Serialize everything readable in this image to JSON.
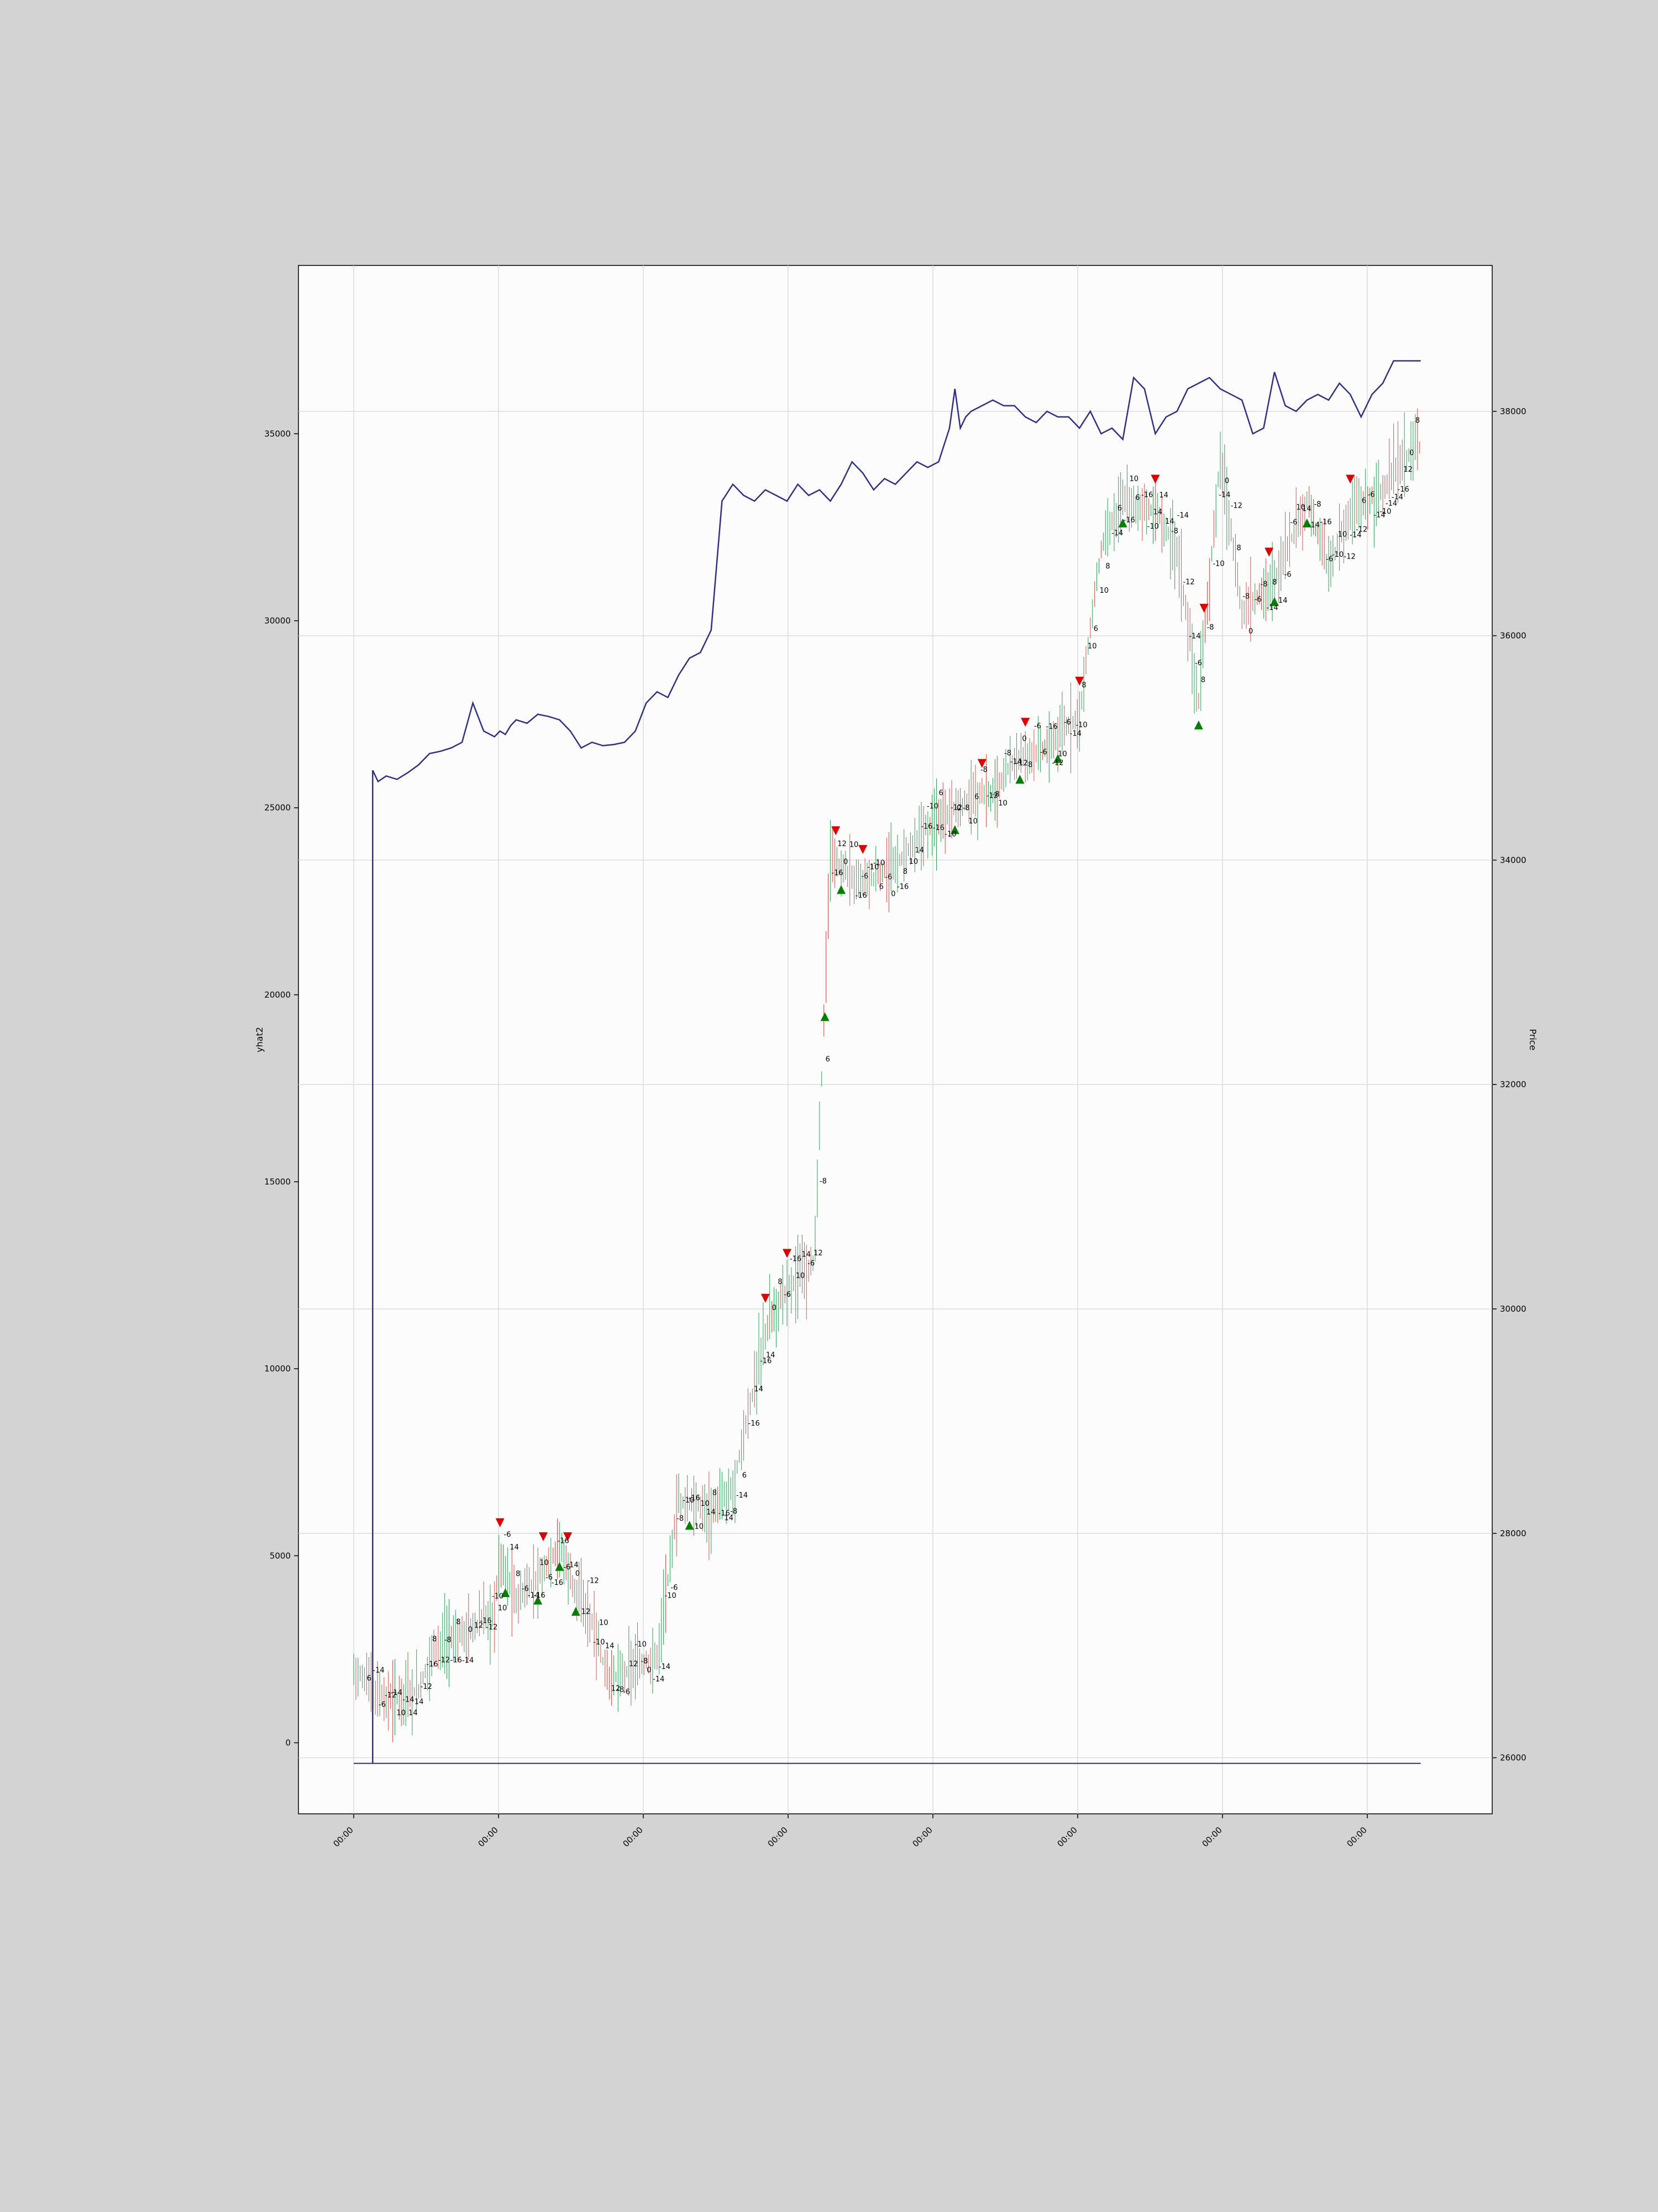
{
  "chart_data": {
    "type": "line",
    "ylabel_left": "yhat2",
    "ylabel_right": "Price",
    "xlabel": "",
    "x_tick_labels": [
      "00:00",
      "00:00",
      "00:00",
      "00:00",
      "00:00",
      "00:00",
      "00:00",
      "00:00"
    ],
    "left_axis": {
      "ylim": [
        -1900,
        39500
      ],
      "ticks": [
        0,
        5000,
        10000,
        15000,
        20000,
        25000,
        30000,
        35000
      ]
    },
    "right_axis": {
      "ylim": [
        25500,
        39300
      ],
      "ticks": [
        26000,
        28000,
        30000,
        32000,
        34000,
        36000,
        38000
      ]
    },
    "grid": true,
    "legend": "none",
    "colors": {
      "yhat_line": "#2e2e8f",
      "up_candle": "#2ca05a",
      "down_candle": "#d9534f",
      "buy_marker": "#008000",
      "sell_marker": "#e00000",
      "annotation": "#000000"
    },
    "series": [
      {
        "axis": "right",
        "x": [
          0,
          3,
          6,
          10,
          13,
          20,
          30,
          40,
          50,
          60,
          70,
          80,
          90,
          100,
          110,
          120,
          130,
          140,
          150,
          160,
          170,
          180,
          190,
          200,
          210,
          220,
          230,
          240,
          250,
          260,
          270,
          280,
          290,
          300,
          310,
          320,
          330,
          340,
          350,
          360,
          370,
          380,
          390,
          400,
          410,
          420,
          430,
          440,
          450,
          460,
          470,
          480,
          490,
          500,
          510,
          520,
          530,
          540,
          550,
          560,
          570,
          580,
          590,
          600,
          610,
          620,
          630,
          640,
          650,
          660,
          670,
          680,
          690,
          700,
          710,
          720,
          730,
          740,
          750,
          760,
          770,
          780,
          790,
          800,
          810,
          820,
          830,
          840,
          850,
          860,
          870,
          880,
          890,
          900,
          910,
          920,
          930,
          940,
          950,
          960,
          970,
          980,
          990,
          1000,
          1010,
          1020,
          1030,
          1040,
          1050,
          1060,
          1070,
          1080,
          1090,
          1100,
          1110,
          1120,
          1130,
          1140,
          1150,
          1160,
          1170,
          1180,
          1190,
          1200,
          1210,
          1220,
          1230,
          1240,
          1250,
          1260,
          1270,
          1280,
          1290,
          1300,
          1310,
          1320,
          1330,
          1340,
          1350,
          1360,
          1370,
          1380,
          1390,
          1400,
          1410,
          1420,
          1430,
          1440,
          1450,
          1460,
          1470,
          1480,
          1490,
          1500,
          1510,
          1520,
          1530,
          1540,
          1550,
          1560,
          1570,
          1580,
          1590,
          1600,
          1610,
          1620,
          1630,
          1640,
          1650,
          1660,
          1670,
          1680,
          1690,
          1700,
          1710,
          1720,
          1730,
          1740,
          1750,
          1760,
          1770,
          1780,
          1790,
          1800,
          1810,
          1820,
          1830,
          1840,
          1850,
          1860,
          1870,
          1880,
          1890,
          1900,
          1910,
          1920,
          1930,
          1940,
          1950,
          1960,
          1970
        ],
        "y": [
          25950,
          25950,
          25950,
          25950,
          25950,
          25950,
          25950,
          25950,
          25950,
          25950,
          25950,
          25950,
          25950,
          25950,
          25950,
          25950,
          25950,
          25950,
          25950,
          25950,
          25950,
          25950,
          25950,
          25950,
          25950,
          25950,
          25950,
          25950,
          25950,
          25950,
          25950,
          25950,
          25950,
          25950,
          25950,
          25950,
          25950,
          25950,
          25950,
          25950,
          25950,
          25950,
          25950,
          25950,
          25950,
          25950,
          25950,
          25950,
          25950,
          25950,
          25950,
          25950,
          25950,
          25950,
          25950,
          25950,
          25950,
          25950,
          25950,
          25950,
          25950,
          25950,
          25950,
          25950,
          25950,
          25950,
          25950,
          25950,
          25950,
          25950,
          25950,
          25950,
          25950,
          25950,
          25950,
          25950,
          25950,
          25950,
          25950,
          25950,
          25950,
          25950,
          25950,
          25950,
          25950,
          25950,
          25950,
          25950,
          25950,
          25950,
          25950,
          25950,
          25950,
          25950,
          25950,
          25950,
          25950,
          25950,
          25950,
          25950,
          25950,
          25950,
          25950,
          25950,
          25950,
          25950,
          25950,
          25950,
          25950,
          25950,
          25950,
          25950,
          25950,
          25950,
          25950,
          25950,
          25950,
          25950,
          25950,
          25950,
          25950,
          25950,
          25950,
          25950,
          25950,
          25950,
          25950,
          25950,
          25950,
          25950,
          25950,
          25950,
          25950,
          25950,
          25950,
          25950,
          25950,
          25950,
          25950,
          25950,
          25950,
          25950,
          25950,
          25950,
          25950,
          25950,
          25950,
          25950,
          25950,
          25950,
          25950,
          25950,
          25950,
          25950,
          25950,
          25950,
          25950,
          25950,
          25950,
          25950,
          25950,
          25950,
          25950,
          25950,
          25950,
          25950,
          25950,
          25950,
          25950,
          25950,
          25950,
          25950,
          25950,
          25950,
          25950,
          25950,
          25950,
          25950,
          25950,
          25950,
          25950,
          25950,
          25950,
          25950,
          25950,
          25950,
          25950,
          25950,
          25950,
          25950,
          25950,
          25950,
          25950,
          25950,
          25950,
          25950,
          25950,
          25950,
          25950,
          25950,
          25950
        ]
      },
      {
        "name": "",
        "axis": "right",
        "x": [
          35,
          45,
          60,
          80,
          100,
          120,
          140,
          160,
          180,
          200,
          220,
          240,
          260,
          270,
          280,
          290,
          300,
          320,
          340,
          360,
          380,
          400,
          420,
          440,
          460,
          480,
          500,
          520,
          540,
          560,
          580,
          600,
          620,
          640,
          660,
          680,
          700,
          720,
          740,
          760,
          780,
          800,
          820,
          840,
          860,
          880,
          900,
          920,
          940,
          960,
          980,
          1000,
          1020,
          1040,
          1060,
          1080,
          1100,
          1110,
          1120,
          1130,
          1140,
          1160,
          1180,
          1200,
          1220,
          1240,
          1260,
          1280,
          1300,
          1320,
          1340,
          1360,
          1380,
          1400,
          1420,
          1440,
          1460,
          1480,
          1500,
          1520,
          1540,
          1560,
          1580,
          1600,
          1620,
          1640,
          1660,
          1680,
          1700,
          1720,
          1740,
          1760,
          1780,
          1800,
          1820,
          1840,
          1860,
          1880,
          1900,
          1920,
          1940,
          1960,
          1970
        ],
        "y": [
          34800,
          34700,
          34750,
          34720,
          34780,
          34850,
          34950,
          34970,
          35000,
          35050,
          35400,
          35150,
          35100,
          35150,
          35120,
          35200,
          35250,
          35220,
          35300,
          35280,
          35250,
          35150,
          35000,
          35050,
          35020,
          35030,
          35050,
          35150,
          35400,
          35500,
          35450,
          35650,
          35800,
          35850,
          36050,
          37200,
          37350,
          37250,
          37200,
          37300,
          37250,
          37200,
          37350,
          37250,
          37300,
          37200,
          37350,
          37550,
          37450,
          37300,
          37400,
          37350,
          37450,
          37550,
          37500,
          37550,
          37850,
          38200,
          37850,
          37950,
          38000,
          38050,
          38100,
          38050,
          38050,
          37950,
          37900,
          38000,
          37950,
          37950,
          37850,
          38000,
          37800,
          37850,
          37750,
          38300,
          38200,
          37800,
          37950,
          38000,
          38200,
          38250,
          38300,
          38200,
          38150,
          38100,
          37800,
          37850,
          38350,
          38050,
          38000,
          38100,
          38150,
          38100,
          38250,
          38150,
          37950,
          38150,
          38250,
          38450,
          38450,
          38450,
          38450
        ]
      }
    ],
    "markers_buy_count_note": "",
    "annotations_sample": [
      "0",
      "6",
      "8",
      "10",
      "12",
      "14",
      "-6",
      "-8",
      "-10",
      "-12",
      "-14",
      "-16"
    ]
  }
}
